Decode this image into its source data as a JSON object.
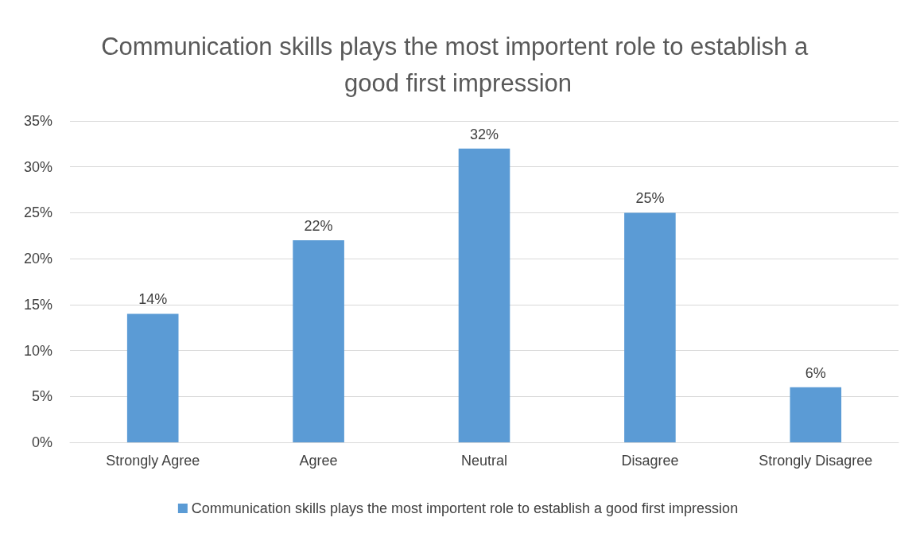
{
  "chart_data": {
    "type": "bar",
    "title": "Communication skills plays the most importent role to establish a good first impression",
    "categories": [
      "Strongly Agree",
      "Agree",
      "Neutral",
      "Disagree",
      "Strongly Disagree"
    ],
    "series": [
      {
        "name": "Communication skills plays the most importent role to establish a good first impression",
        "color": "#5b9bd5",
        "values": [
          14,
          22,
          32,
          25,
          6
        ],
        "value_labels": [
          "14%",
          "22%",
          "32%",
          "25%",
          "6%"
        ]
      }
    ],
    "ylim": [
      0,
      35
    ],
    "yticks": [
      {
        "value": 0,
        "label": "0%"
      },
      {
        "value": 5,
        "label": "5%"
      },
      {
        "value": 10,
        "label": "10%"
      },
      {
        "value": 15,
        "label": "15%"
      },
      {
        "value": 20,
        "label": "20%"
      },
      {
        "value": 25,
        "label": "25%"
      },
      {
        "value": 30,
        "label": "30%"
      },
      {
        "value": 35,
        "label": "35%"
      }
    ],
    "grid": "y",
    "legend": "bottom"
  }
}
